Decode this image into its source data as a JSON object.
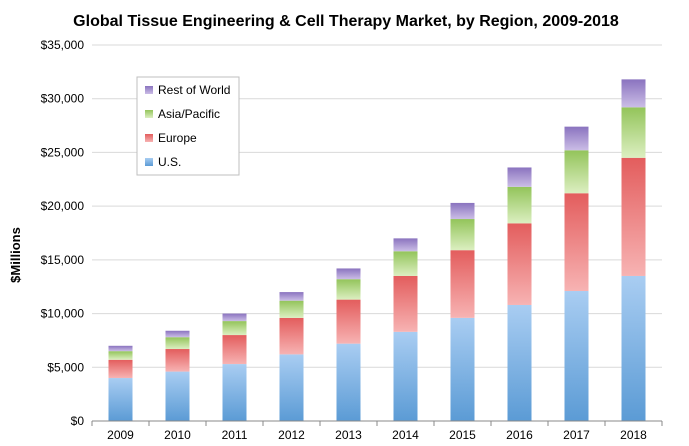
{
  "chart_data": {
    "type": "bar",
    "stacked": true,
    "title": "Global Tissue Engineering & Cell Therapy Market, by Region, 2009-2018",
    "xlabel": "",
    "ylabel": "$Millions",
    "categories": [
      "2009",
      "2010",
      "2011",
      "2012",
      "2013",
      "2014",
      "2015",
      "2016",
      "2017",
      "2018"
    ],
    "ylim": [
      0,
      35000
    ],
    "yticks": [
      0,
      5000,
      10000,
      15000,
      20000,
      25000,
      30000,
      35000
    ],
    "ytick_labels": [
      "$0",
      "$5,000",
      "$10,000",
      "$15,000",
      "$20,000",
      "$25,000",
      "$30,000",
      "$35,000"
    ],
    "grid": true,
    "legend_position": "top-left",
    "series": [
      {
        "name": "U.S.",
        "color": "#5b9bd5",
        "values": [
          4000,
          4600,
          5300,
          6200,
          7200,
          8300,
          9600,
          10800,
          12100,
          13500
        ]
      },
      {
        "name": "Europe",
        "color": "#e46c6c",
        "values": [
          1700,
          2100,
          2700,
          3400,
          4100,
          5200,
          6300,
          7600,
          9100,
          11000
        ]
      },
      {
        "name": "Asia/Pacific",
        "color": "#a8d16e",
        "values": [
          800,
          1100,
          1300,
          1600,
          1900,
          2300,
          2900,
          3400,
          4000,
          4700
        ]
      },
      {
        "name": "Rest of World",
        "color": "#9b86c9",
        "values": [
          500,
          600,
          700,
          800,
          1000,
          1200,
          1500,
          1800,
          2200,
          2600
        ]
      }
    ]
  }
}
